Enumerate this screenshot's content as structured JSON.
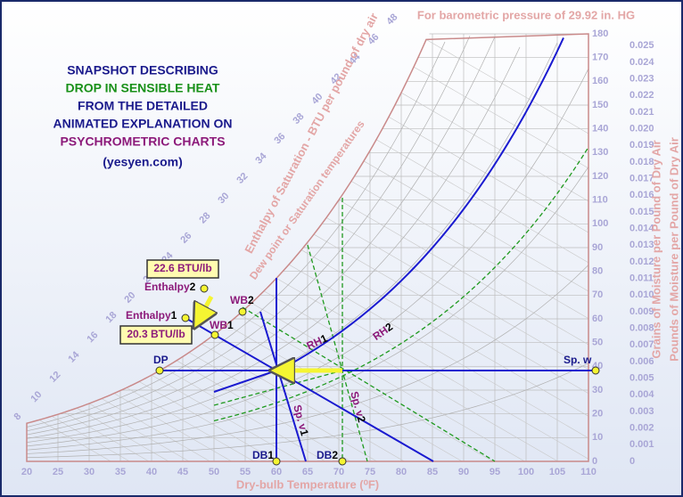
{
  "title_lines": [
    {
      "text": "SNAPSHOT DESCRIBING",
      "color": "#1a1a8c"
    },
    {
      "text": "DROP IN SENSIBLE HEAT",
      "color": "#189018"
    },
    {
      "text": "FROM THE DETAILED",
      "color": "#1a1a8c"
    },
    {
      "text": "ANIMATED EXPLANATION ON",
      "color": "#1a1a8c"
    },
    {
      "text": "PSYCHROMETRIC CHARTS",
      "color": "#8c1a7a"
    },
    {
      "text": "(yesyen.com)",
      "color": "#1a1a8c"
    }
  ],
  "header_note": "For barometric pressure of 29.92 in. HG",
  "x_axis": {
    "title": "Dry-bulb Temperature (⁰F)",
    "ticks": [
      20,
      25,
      30,
      35,
      40,
      45,
      50,
      55,
      60,
      65,
      70,
      75,
      80,
      85,
      90,
      95,
      100,
      105,
      110
    ]
  },
  "grains_axis": {
    "title": "Grains of Moisture per Pound of Dry Air",
    "ticks": [
      0,
      10,
      20,
      30,
      40,
      50,
      60,
      70,
      80,
      90,
      100,
      110,
      120,
      130,
      140,
      150,
      160,
      170,
      180
    ]
  },
  "pounds_axis": {
    "title": "Pounds of Moisture per Pound of Dry Air",
    "ticks": [
      "0",
      "0.001",
      "0.002",
      "0.003",
      "0.004",
      "0.005",
      "0.006",
      "0.007",
      "0.008",
      "0.009",
      "0.010",
      "0.011",
      "0.012",
      "0.013",
      "0.014",
      "0.015",
      "0.016",
      "0.017",
      "0.018",
      "0.019",
      "0.020",
      "0.021",
      "0.022",
      "0.023",
      "0.024",
      "0.025"
    ]
  },
  "enthalpy_scale": {
    "title": "Enthalpy of Saturation - BTU per pound of dry air",
    "ticks": [
      8,
      10,
      12,
      14,
      16,
      18,
      20,
      22,
      24,
      26,
      28,
      30,
      32,
      34,
      36,
      38,
      40,
      42,
      44,
      46,
      48
    ]
  },
  "saturation_label": "Dew point or Saturation temperatures",
  "points": [
    {
      "name": "DP",
      "index": ""
    },
    {
      "name": "Sp. w",
      "index": ""
    },
    {
      "name": "DB",
      "index": "1"
    },
    {
      "name": "DB",
      "index": "2"
    },
    {
      "name": "WB",
      "index": "1"
    },
    {
      "name": "WB",
      "index": "2"
    },
    {
      "name": "Enthalpy",
      "index": "1"
    },
    {
      "name": "Enthalpy",
      "index": "2"
    }
  ],
  "callouts": [
    "22.6 BTU/lb",
    "20.3 BTU/lb"
  ],
  "line_labels": [
    {
      "name": "RH",
      "index": "1"
    },
    {
      "name": "RH",
      "index": "2"
    },
    {
      "name": "Sp. v",
      "index": "1"
    },
    {
      "name": "Sp. v",
      "index": "2"
    }
  ]
}
